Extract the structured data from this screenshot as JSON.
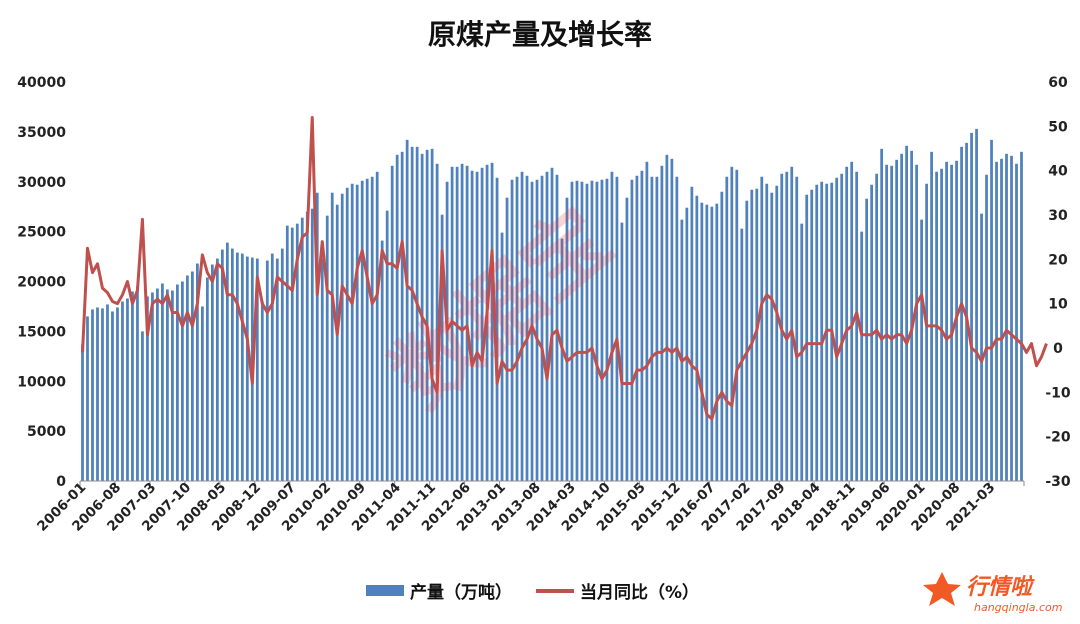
{
  "chart_data": {
    "type": "bar+line",
    "title": "原煤产量及增长率",
    "left_axis": {
      "ylim": [
        0,
        40000
      ],
      "ticks": [
        "0",
        "5000",
        "10000",
        "15000",
        "20000",
        "25000",
        "30000",
        "35000",
        "40000"
      ]
    },
    "right_axis": {
      "ylim": [
        -30,
        60
      ],
      "ticks": [
        "-30",
        "-20",
        "-10",
        "0",
        "10",
        "20",
        "30",
        "40",
        "50",
        "60"
      ]
    },
    "x_tick_labels": [
      "2006-01",
      "2006-08",
      "2007-03",
      "2007-10",
      "2008-05",
      "2008-12",
      "2009-07",
      "2010-02",
      "2010-09",
      "2011-04",
      "2011-11",
      "2012-06",
      "2013-01",
      "2013-08",
      "2014-03",
      "2014-10",
      "2015-05",
      "2015-12",
      "2016-07",
      "2017-02",
      "2017-09",
      "2018-04",
      "2018-11",
      "2019-06",
      "2020-01",
      "2020-08",
      "2021-03"
    ],
    "legend_position": "bottom",
    "series": [
      {
        "name": "产量（万吨）",
        "type": "bar",
        "axis": "left",
        "color": "#4f81bd",
        "start": "2006-01",
        "values": [
          13700,
          16500,
          17200,
          17400,
          17300,
          17700,
          17000,
          17400,
          18000,
          18300,
          19000,
          19500,
          15000,
          18500,
          18900,
          19300,
          19800,
          19200,
          19100,
          19700,
          20000,
          20600,
          21000,
          21800,
          17500,
          20400,
          21700,
          22300,
          23200,
          23900,
          23300,
          22900,
          22800,
          22500,
          22400,
          22300,
          18000,
          22100,
          22800,
          22300,
          23300,
          25600,
          25400,
          25800,
          26400,
          27000,
          27300,
          28900,
          22300,
          26600,
          28900,
          27700,
          28800,
          29400,
          29800,
          29700,
          30100,
          30300,
          30500,
          31000,
          24100,
          27100,
          31600,
          32700,
          33000,
          34200,
          33500,
          33500,
          32800,
          33200,
          33300,
          31800,
          26700,
          30000,
          31500,
          31500,
          31800,
          31600,
          31100,
          31000,
          31400,
          31700,
          31900,
          30400,
          24900,
          28400,
          30200,
          30500,
          31000,
          30600,
          30000,
          30200,
          30600,
          31000,
          31400,
          30700,
          24300,
          28400,
          30000,
          30100,
          30000,
          29800,
          30100,
          30000,
          30200,
          30300,
          31000,
          30500,
          25900,
          28400,
          30200,
          30600,
          31100,
          32000,
          30500,
          30500,
          31600,
          32700,
          32300,
          30500,
          26200,
          27400,
          29500,
          28600,
          27900,
          27700,
          27500,
          27800,
          29000,
          30500,
          31500,
          31200,
          25300,
          28100,
          29200,
          29300,
          30500,
          29800,
          28900,
          29600,
          30800,
          31000,
          31500,
          30500,
          25800,
          28700,
          29200,
          29700,
          30000,
          29800,
          29900,
          30400,
          30800,
          31500,
          32000,
          31000,
          25000,
          28300,
          29700,
          30800,
          33300,
          31700,
          31600,
          32200,
          32800,
          33600,
          33100,
          31700,
          26200,
          29800,
          33000,
          31000,
          31300,
          32000,
          31700,
          32100,
          33500,
          33900,
          34900,
          35300,
          26800,
          30700,
          34200,
          32000,
          32300,
          32800,
          32600,
          31800,
          33000
        ]
      },
      {
        "name": "当月同比（%）",
        "type": "line",
        "axis": "right",
        "color": "#c0504d",
        "start": "2006-01",
        "values": [
          -1,
          22.5,
          17,
          19,
          13.5,
          12.5,
          10.5,
          10,
          12,
          15,
          10,
          13,
          29,
          3,
          10,
          11,
          10,
          12,
          8,
          8,
          5,
          8,
          5,
          10,
          21,
          17,
          15,
          19,
          18,
          12,
          12,
          10,
          6,
          2,
          -8,
          16,
          10,
          8,
          10,
          16,
          15,
          14,
          13,
          20,
          25,
          26,
          52,
          12,
          24,
          13,
          12,
          3,
          14,
          12,
          10,
          18,
          22,
          16,
          10,
          12,
          22,
          19,
          19,
          18,
          24,
          14,
          13,
          10,
          7,
          5,
          -7,
          -10,
          22,
          4,
          6,
          5,
          4,
          5,
          -4,
          -1,
          -3,
          8,
          22,
          -8,
          -3,
          -5,
          -5,
          -3,
          0,
          2,
          5,
          2,
          0,
          -7,
          3,
          4,
          0,
          -3,
          -2,
          -1,
          -1,
          -1,
          0,
          -4,
          -7,
          -5,
          -1,
          2,
          -8,
          -8,
          -8,
          -5,
          -5,
          -4,
          -2,
          -1,
          -1,
          0,
          -1,
          0,
          -3,
          -2,
          -4,
          -5,
          -10,
          -15,
          -16,
          -12,
          -10,
          -12,
          -13,
          -5,
          -3,
          -1,
          1,
          4,
          10,
          12,
          11,
          8,
          4,
          2,
          4,
          -2,
          -1,
          1,
          1,
          1,
          1,
          4,
          4,
          -2,
          1,
          4,
          5,
          8,
          3,
          3,
          3,
          4,
          2,
          3,
          2,
          3,
          3,
          1,
          4,
          10,
          12,
          5,
          5,
          5,
          4,
          2,
          3,
          7,
          10,
          7,
          0,
          -1,
          -3,
          0,
          0,
          2,
          2,
          4,
          3,
          2,
          1,
          -1,
          1,
          -4,
          -2,
          1
        ]
      }
    ]
  },
  "watermark": {
    "diagonal_text": "数据宝",
    "logo_text": "行情啦",
    "logo_sub": "hangqingla.com"
  }
}
